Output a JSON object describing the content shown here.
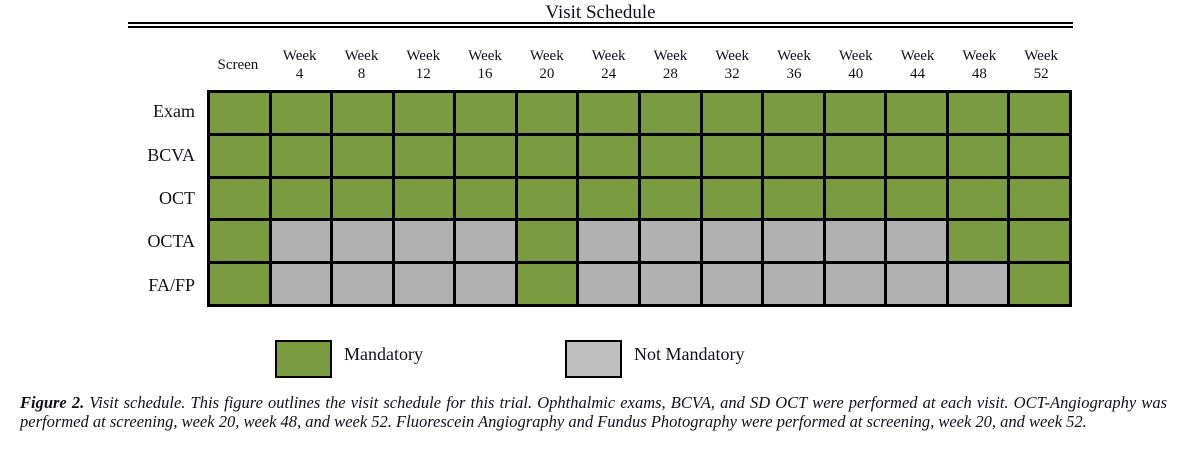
{
  "figure": {
    "title": "Visit Schedule"
  },
  "chart_data": {
    "type": "heatmap",
    "title": "Visit Schedule",
    "columns": [
      "Screen",
      "Week 4",
      "Week 8",
      "Week 12",
      "Week 16",
      "Week 20",
      "Week 24",
      "Week 28",
      "Week 32",
      "Week 36",
      "Week 40",
      "Week 44",
      "Week 48",
      "Week 52"
    ],
    "rows": [
      {
        "label": "Exam",
        "values": [
          1,
          1,
          1,
          1,
          1,
          1,
          1,
          1,
          1,
          1,
          1,
          1,
          1,
          1
        ]
      },
      {
        "label": "BCVA",
        "values": [
          1,
          1,
          1,
          1,
          1,
          1,
          1,
          1,
          1,
          1,
          1,
          1,
          1,
          1
        ]
      },
      {
        "label": "OCT",
        "values": [
          1,
          1,
          1,
          1,
          1,
          1,
          1,
          1,
          1,
          1,
          1,
          1,
          1,
          1
        ]
      },
      {
        "label": "OCTA",
        "values": [
          1,
          0,
          0,
          0,
          0,
          1,
          0,
          0,
          0,
          0,
          0,
          0,
          1,
          1
        ]
      },
      {
        "label": "FA/FP",
        "values": [
          1,
          0,
          0,
          0,
          0,
          1,
          0,
          0,
          0,
          0,
          0,
          0,
          0,
          1
        ]
      }
    ],
    "value_meaning": {
      "1": "Mandatory",
      "0": "Not Mandatory"
    },
    "colors": {
      "mandatory": "#7a9b40",
      "not_mandatory": "#b1b1b1",
      "legend_not_mandatory": "#bfbfbf",
      "grid_line": "#000000"
    },
    "legend_position": "bottom",
    "grid": "on"
  },
  "legend": {
    "mandatory_label": "Mandatory",
    "not_mandatory_label": "Not Mandatory"
  },
  "caption": {
    "label": "Figure 2.",
    "text": "Visit schedule. This figure outlines the visit schedule for this trial. Ophthalmic exams, BCVA, and SD OCT were performed at each visit. OCT-Angiography was performed at screening, week 20, week 48, and week 52. Fluorescein Angiography and Fundus Photography were performed at screening, week 20, and week 52."
  }
}
